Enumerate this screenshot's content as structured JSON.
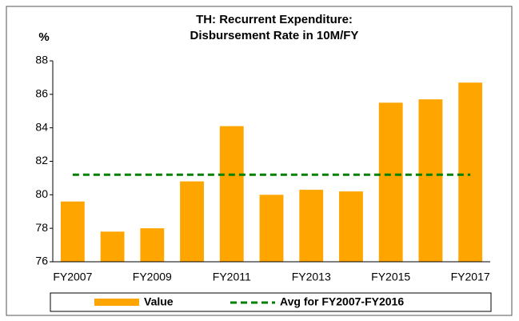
{
  "chart_data": {
    "type": "bar",
    "title": "TH: Recurrent Expenditure:",
    "subtitle": "Disbursement Rate in 10M/FY",
    "y_label": "%",
    "categories": [
      "FY2007",
      null,
      "FY2009",
      null,
      "FY2011",
      null,
      "FY2013",
      null,
      "FY2015",
      null,
      "FY2017"
    ],
    "series": [
      {
        "name": "Value",
        "type": "bar",
        "color": "#ffa500",
        "values": [
          79.6,
          77.8,
          78.0,
          80.8,
          84.1,
          80.0,
          80.3,
          80.2,
          85.5,
          85.7,
          86.7
        ]
      },
      {
        "name": "Avg for FY2007-FY2016",
        "type": "line",
        "dashed": true,
        "color": "#008000",
        "values": [
          81.2,
          81.2,
          81.2,
          81.2,
          81.2,
          81.2,
          81.2,
          81.2,
          81.2,
          81.2,
          81.2
        ]
      }
    ],
    "ylim": [
      76,
      88
    ],
    "yticks": [
      76,
      78,
      80,
      82,
      84,
      86,
      88
    ],
    "grid": false,
    "legend": "bottom"
  }
}
